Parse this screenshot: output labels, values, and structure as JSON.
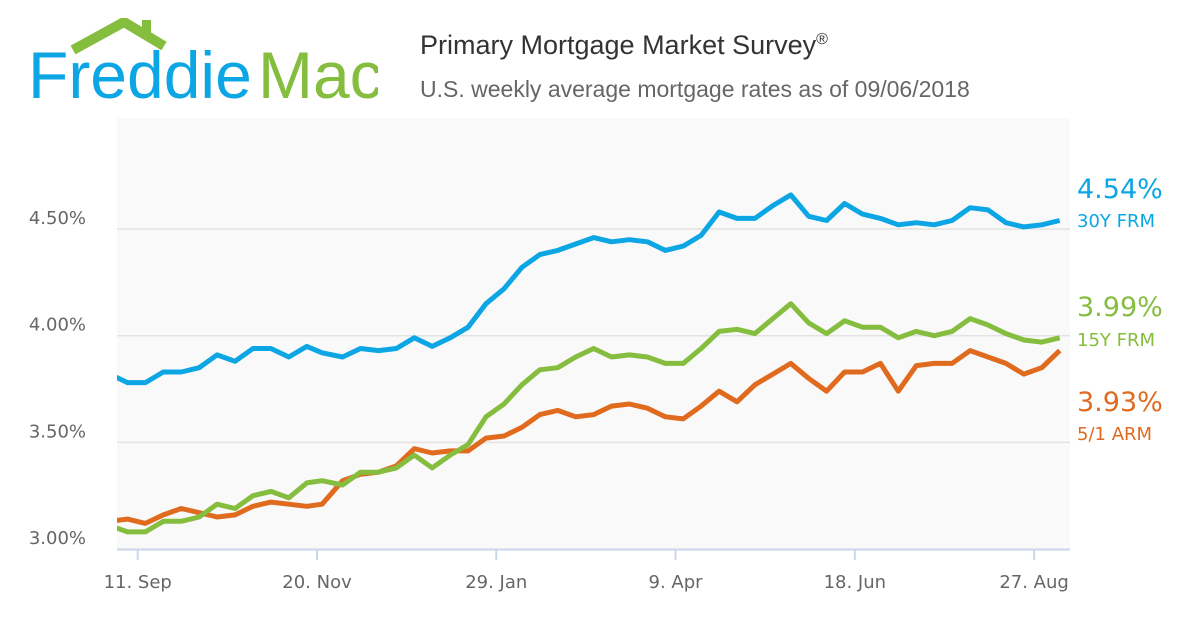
{
  "logo": {
    "text_blue": "Freddie",
    "text_green": "Mac"
  },
  "header": {
    "title": "Primary Mortgage Market Survey",
    "title_mark": "®",
    "subtitle": "U.S. weekly average mortgage rates as of 09/06/2018"
  },
  "colors": {
    "blue": "#0ba6e3",
    "green": "#85bd3e",
    "orange": "#e06a1e",
    "plot_bg": "#f9f9f9",
    "grid": "#e3e3e3"
  },
  "chart_data": {
    "type": "line",
    "title": "Primary Mortgage Market Survey®",
    "subtitle": "U.S. weekly average mortgage rates as of 09/06/2018",
    "x": [
      "2017-08-31",
      "2017-09-07",
      "2017-09-14",
      "2017-09-21",
      "2017-09-28",
      "2017-10-05",
      "2017-10-12",
      "2017-10-19",
      "2017-10-26",
      "2017-11-02",
      "2017-11-09",
      "2017-11-16",
      "2017-11-22",
      "2017-11-30",
      "2017-12-07",
      "2017-12-14",
      "2017-12-21",
      "2017-12-28",
      "2018-01-04",
      "2018-01-11",
      "2018-01-18",
      "2018-01-25",
      "2018-02-01",
      "2018-02-08",
      "2018-02-15",
      "2018-02-22",
      "2018-03-01",
      "2018-03-08",
      "2018-03-15",
      "2018-03-22",
      "2018-03-29",
      "2018-04-05",
      "2018-04-12",
      "2018-04-19",
      "2018-04-26",
      "2018-05-03",
      "2018-05-10",
      "2018-05-17",
      "2018-05-24",
      "2018-05-31",
      "2018-06-07",
      "2018-06-14",
      "2018-06-21",
      "2018-06-28",
      "2018-07-05",
      "2018-07-12",
      "2018-07-19",
      "2018-07-26",
      "2018-08-02",
      "2018-08-09",
      "2018-08-16",
      "2018-08-23",
      "2018-08-30",
      "2018-09-06"
    ],
    "series": [
      {
        "name": "30Y FRM",
        "last_label": "4.54%",
        "color": "#0ba6e3",
        "values": [
          3.82,
          3.78,
          3.78,
          3.83,
          3.83,
          3.85,
          3.91,
          3.88,
          3.94,
          3.94,
          3.9,
          3.95,
          3.92,
          3.9,
          3.94,
          3.93,
          3.94,
          3.99,
          3.95,
          3.99,
          4.04,
          4.15,
          4.22,
          4.32,
          4.38,
          4.4,
          4.43,
          4.46,
          4.44,
          4.45,
          4.44,
          4.4,
          4.42,
          4.47,
          4.58,
          4.55,
          4.55,
          4.61,
          4.66,
          4.56,
          4.54,
          4.62,
          4.57,
          4.55,
          4.52,
          4.53,
          4.52,
          4.54,
          4.6,
          4.59,
          4.53,
          4.51,
          4.52,
          4.54
        ]
      },
      {
        "name": "15Y FRM",
        "last_label": "3.99%",
        "color": "#85bd3e",
        "values": [
          3.11,
          3.08,
          3.08,
          3.13,
          3.13,
          3.15,
          3.21,
          3.19,
          3.25,
          3.27,
          3.24,
          3.31,
          3.32,
          3.3,
          3.36,
          3.36,
          3.38,
          3.44,
          3.38,
          3.44,
          3.49,
          3.62,
          3.68,
          3.77,
          3.84,
          3.85,
          3.9,
          3.94,
          3.9,
          3.91,
          3.9,
          3.87,
          3.87,
          3.94,
          4.02,
          4.03,
          4.01,
          4.08,
          4.15,
          4.06,
          4.01,
          4.07,
          4.04,
          4.04,
          3.99,
          4.02,
          4.0,
          4.02,
          4.08,
          4.05,
          4.01,
          3.98,
          3.97,
          3.99
        ]
      },
      {
        "name": "5/1 ARM",
        "last_label": "3.93%",
        "color": "#e06a1e",
        "values": [
          3.13,
          3.14,
          3.12,
          3.16,
          3.19,
          3.17,
          3.15,
          3.16,
          3.2,
          3.22,
          3.21,
          3.2,
          3.21,
          3.32,
          3.35,
          3.36,
          3.39,
          3.47,
          3.45,
          3.46,
          3.46,
          3.52,
          3.53,
          3.57,
          3.63,
          3.65,
          3.62,
          3.63,
          3.67,
          3.68,
          3.66,
          3.62,
          3.61,
          3.67,
          3.74,
          3.69,
          3.77,
          3.82,
          3.87,
          3.8,
          3.74,
          3.83,
          3.83,
          3.87,
          3.74,
          3.86,
          3.87,
          3.87,
          3.93,
          3.9,
          3.87,
          3.82,
          3.85,
          3.93
        ]
      }
    ],
    "y_ticks": [
      {
        "value": 3.0,
        "label": "3.00%"
      },
      {
        "value": 3.5,
        "label": "3.50%"
      },
      {
        "value": 4.0,
        "label": "4.00%"
      },
      {
        "value": 4.5,
        "label": "4.50%"
      }
    ],
    "x_ticks": [
      {
        "date": "2017-09-11",
        "label": "11. Sep"
      },
      {
        "date": "2017-11-20",
        "label": "20. Nov"
      },
      {
        "date": "2018-01-29",
        "label": "29. Jan"
      },
      {
        "date": "2018-04-09",
        "label": "9. Apr"
      },
      {
        "date": "2018-06-18",
        "label": "18. Jun"
      },
      {
        "date": "2018-08-27",
        "label": "27. Aug"
      }
    ],
    "ylim": [
      3.0,
      5.0
    ],
    "xlim": [
      "2017-09-03",
      "2018-09-10"
    ],
    "grid": "horizontal",
    "legend": "right, end-of-line labels"
  }
}
